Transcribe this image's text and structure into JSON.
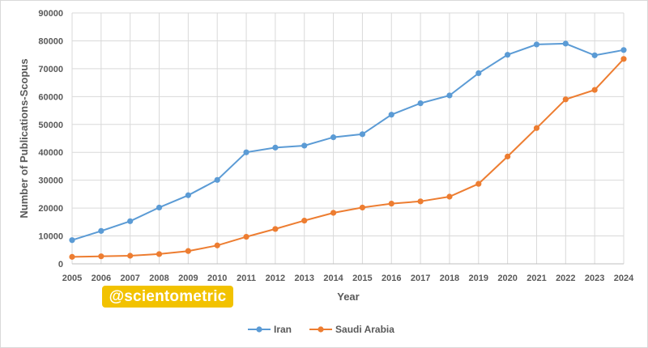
{
  "chart_data": {
    "type": "line",
    "title": "",
    "xlabel": "Year",
    "ylabel": "Number of Publications-Scopus",
    "ylim": [
      0,
      90000
    ],
    "y_ticks": [
      0,
      10000,
      20000,
      30000,
      40000,
      50000,
      60000,
      70000,
      80000,
      90000
    ],
    "grid": true,
    "legend_position": "bottom",
    "categories": [
      "2005",
      "2006",
      "2007",
      "2008",
      "2009",
      "2010",
      "2011",
      "2012",
      "2013",
      "2014",
      "2015",
      "2016",
      "2017",
      "2018",
      "2019",
      "2020",
      "2021",
      "2022",
      "2023",
      "2024"
    ],
    "series": [
      {
        "name": "Iran",
        "color": "#5b9bd5",
        "values": [
          8500,
          11800,
          15300,
          20200,
          24600,
          30100,
          40000,
          41700,
          42400,
          45400,
          46500,
          53500,
          57600,
          60400,
          68400,
          75000,
          78700,
          79000,
          74800,
          76700
        ]
      },
      {
        "name": "Saudi Arabia",
        "color": "#ed7d31",
        "values": [
          2500,
          2700,
          2900,
          3500,
          4600,
          6600,
          9700,
          12500,
          15500,
          18300,
          20200,
          21600,
          22400,
          24100,
          28700,
          38500,
          48700,
          59000,
          62400,
          73500
        ]
      }
    ]
  },
  "watermark": "@scientometric"
}
